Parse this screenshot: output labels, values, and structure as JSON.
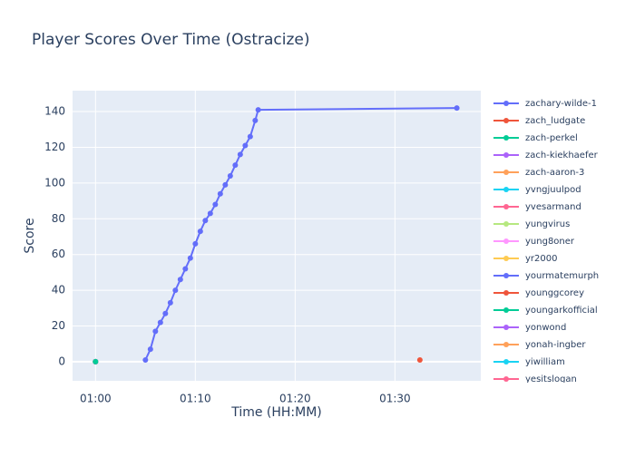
{
  "chart_data": {
    "type": "line",
    "title": "Player Scores Over Time (Ostracize)",
    "x_label": "Time (HH:MM)",
    "y_label": "Score",
    "xlim": [
      57.7,
      98.6
    ],
    "ylim": [
      -10.7,
      151.7
    ],
    "xticks": [
      {
        "value": 60,
        "label": "01:00"
      },
      {
        "value": 70,
        "label": "01:10"
      },
      {
        "value": 80,
        "label": "01:20"
      },
      {
        "value": 90,
        "label": "01:30"
      }
    ],
    "yticks": [
      0,
      20,
      40,
      60,
      80,
      100,
      120,
      140
    ],
    "grid": true,
    "legend": "right",
    "series": [
      {
        "name": "zachary-wilde-1",
        "color": "#636efa",
        "x": [
          65,
          65.5,
          66,
          66.5,
          67,
          67.5,
          68,
          68.5,
          69,
          69.5,
          70,
          70.5,
          71,
          71.5,
          72,
          72.5,
          73,
          73.5,
          74,
          74.5,
          75,
          75.5,
          76,
          76.3,
          96.2
        ],
        "values": [
          1,
          7,
          17,
          22,
          27,
          33,
          40,
          46,
          52,
          58,
          66,
          73,
          79,
          83,
          88,
          94,
          99,
          104,
          110,
          116,
          121,
          126,
          135,
          141,
          142
        ]
      },
      {
        "name": "zach_ludgate",
        "color": "#ef553b",
        "x": [
          92.5
        ],
        "values": [
          1
        ]
      },
      {
        "name": "zach-perkel",
        "color": "#00cc96",
        "x": [
          60
        ],
        "values": [
          0
        ]
      },
      {
        "name": "zach-kiekhaefer",
        "color": "#ab63fa",
        "x": [
          60
        ],
        "values": [
          0
        ]
      },
      {
        "name": "zach-aaron-3",
        "color": "#ffa15a",
        "x": [
          60
        ],
        "values": [
          0
        ]
      },
      {
        "name": "yvngjuulpod",
        "color": "#19d3f3",
        "x": [
          60
        ],
        "values": [
          0
        ]
      },
      {
        "name": "yvesarmand",
        "color": "#ff6692",
        "x": [
          60
        ],
        "values": [
          0
        ]
      },
      {
        "name": "yungvirus",
        "color": "#b6e880",
        "x": [
          60
        ],
        "values": [
          0
        ]
      },
      {
        "name": "yung8oner",
        "color": "#ff97ff",
        "x": [
          60
        ],
        "values": [
          0
        ]
      },
      {
        "name": "yr2000",
        "color": "#fecb52",
        "x": [
          60
        ],
        "values": [
          0
        ]
      },
      {
        "name": "yourmatemurph",
        "color": "#636efa",
        "x": [
          60
        ],
        "values": [
          0
        ]
      },
      {
        "name": "younggcorey",
        "color": "#ef553b",
        "x": [
          60
        ],
        "values": [
          0
        ]
      },
      {
        "name": "youngarkofficial",
        "color": "#00cc96",
        "x": [
          60
        ],
        "values": [
          0
        ]
      },
      {
        "name": "yonwond",
        "color": "#ab63fa",
        "x": [
          60
        ],
        "values": [
          0
        ]
      },
      {
        "name": "yonah-ingber",
        "color": "#ffa15a",
        "x": [
          60
        ],
        "values": [
          0
        ]
      },
      {
        "name": "yiwilliam",
        "color": "#19d3f3",
        "x": [
          60
        ],
        "values": [
          0
        ]
      },
      {
        "name": "yesitslogan",
        "color": "#ff6692",
        "x": [
          60
        ],
        "values": [
          0
        ]
      }
    ]
  }
}
